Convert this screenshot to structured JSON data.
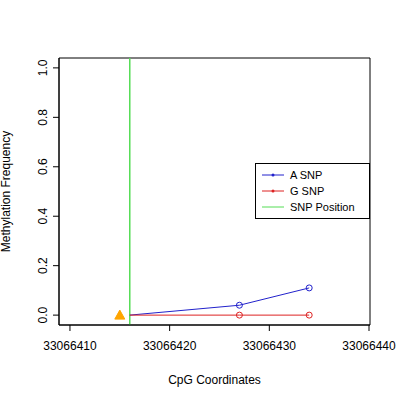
{
  "chart_data": {
    "type": "line",
    "x_label": "CpG Coordinates",
    "y_label": "Methylation Frequency",
    "x": [
      33066416,
      33066427,
      33066434
    ],
    "series": [
      {
        "name": "A SNP",
        "color": "#2222cc",
        "values": [
          0,
          0.04,
          0.11
        ],
        "marker": "circle"
      },
      {
        "name": "G SNP",
        "color": "#dd2222",
        "values": [
          0,
          0,
          0
        ],
        "marker": "circle"
      }
    ],
    "snp_position": {
      "name": "SNP Position",
      "x": 33066416,
      "color": "#55dd55"
    },
    "snp_marker": {
      "x": 33066415,
      "y": 0,
      "color": "#ffa500",
      "marker": "triangle"
    },
    "xlim": [
      33066408.9,
      33066440.1
    ],
    "xticks": [
      33066410,
      33066420,
      33066430,
      33066440
    ],
    "ylim": [
      -0.04,
      1.04
    ],
    "yticks": [
      {
        "value": 0,
        "label": "0.0"
      },
      0.2,
      0.4,
      0.6,
      0.8,
      {
        "value": 1,
        "label": "1.0"
      }
    ],
    "legend": "right",
    "grid": false
  }
}
